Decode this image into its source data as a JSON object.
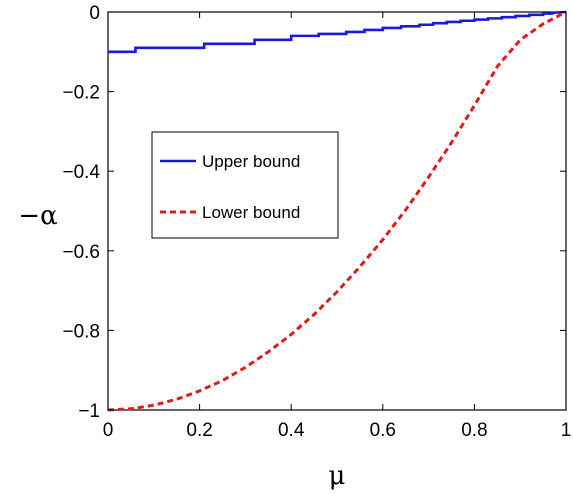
{
  "chart_data": {
    "type": "line",
    "title": "",
    "xlabel": "μ",
    "ylabel": "−α",
    "xlim": [
      0,
      1
    ],
    "ylim": [
      -1,
      0
    ],
    "x_ticks": [
      0,
      0.2,
      0.4,
      0.6,
      0.8,
      1
    ],
    "x_tick_labels": [
      "0",
      "0.2",
      "0.4",
      "0.6",
      "0.8",
      "1"
    ],
    "y_ticks": [
      0,
      -0.2,
      -0.4,
      -0.6,
      -0.8,
      -1
    ],
    "y_tick_labels": [
      "0",
      "−0.2",
      "−0.4",
      "−0.6",
      "−0.8",
      "−1"
    ],
    "grid": false,
    "legend": "center-left",
    "series": [
      {
        "name": "Upper bound",
        "color": "#1a1adc",
        "style": "solid",
        "x": [
          0,
          0.06,
          0.06,
          0.21,
          0.21,
          0.32,
          0.32,
          0.4,
          0.4,
          0.46,
          0.46,
          0.52,
          0.52,
          0.56,
          0.56,
          0.6,
          0.6,
          0.64,
          0.64,
          0.68,
          0.68,
          0.71,
          0.71,
          0.74,
          0.74,
          0.77,
          0.77,
          0.8,
          0.8,
          0.83,
          0.83,
          0.86,
          0.86,
          0.89,
          0.89,
          0.92,
          0.92,
          0.95,
          0.95,
          0.97,
          0.97,
          1
        ],
        "y": [
          -0.1,
          -0.1,
          -0.09,
          -0.09,
          -0.08,
          -0.08,
          -0.07,
          -0.07,
          -0.06,
          -0.06,
          -0.055,
          -0.055,
          -0.05,
          -0.05,
          -0.045,
          -0.045,
          -0.04,
          -0.04,
          -0.036,
          -0.036,
          -0.032,
          -0.032,
          -0.028,
          -0.028,
          -0.025,
          -0.025,
          -0.022,
          -0.022,
          -0.019,
          -0.019,
          -0.016,
          -0.016,
          -0.013,
          -0.013,
          -0.01,
          -0.01,
          -0.007,
          -0.007,
          -0.004,
          -0.004,
          -0.002,
          0
        ]
      },
      {
        "name": "Lower bound",
        "color": "#e01b1b",
        "style": "dashed",
        "x": [
          0,
          0.05,
          0.1,
          0.15,
          0.2,
          0.25,
          0.3,
          0.35,
          0.4,
          0.45,
          0.5,
          0.55,
          0.6,
          0.65,
          0.7,
          0.75,
          0.8,
          0.85,
          0.9,
          0.95,
          1
        ],
        "y": [
          -1,
          -0.997,
          -0.988,
          -0.973,
          -0.952,
          -0.926,
          -0.893,
          -0.854,
          -0.81,
          -0.76,
          -0.703,
          -0.64,
          -0.572,
          -0.497,
          -0.415,
          -0.328,
          -0.235,
          -0.137,
          -0.07,
          -0.03,
          0
        ]
      }
    ]
  }
}
